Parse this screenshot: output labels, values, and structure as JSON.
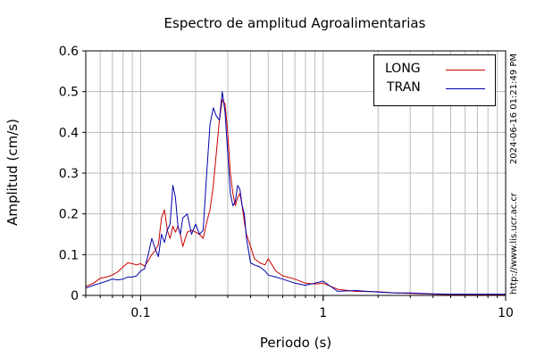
{
  "chart_data": {
    "type": "line",
    "title": "Espectro de amplitud Agroalimentarias",
    "xlabel": "Periodo (s)",
    "ylabel": "Amplitud (cm/s)",
    "xscale": "log",
    "xlim": [
      0.05,
      10
    ],
    "ylim": [
      0,
      0.6
    ],
    "xticks": [
      0.1,
      1,
      10
    ],
    "xtick_labels": [
      "0.1",
      "1",
      "10"
    ],
    "yticks": [
      0,
      0.1,
      0.2,
      0.3,
      0.4,
      0.5,
      0.6
    ],
    "ytick_labels": [
      "0",
      "0.1",
      "0.2",
      "0.3",
      "0.4",
      "0.5",
      "0.6"
    ],
    "grid": true,
    "legend_position": "top-right",
    "series": [
      {
        "name": "LONG",
        "color": "#cc0000",
        "x": [
          0.05,
          0.055,
          0.06,
          0.065,
          0.07,
          0.075,
          0.08,
          0.085,
          0.09,
          0.095,
          0.1,
          0.105,
          0.11,
          0.115,
          0.12,
          0.125,
          0.13,
          0.135,
          0.14,
          0.145,
          0.15,
          0.155,
          0.16,
          0.165,
          0.17,
          0.18,
          0.19,
          0.2,
          0.21,
          0.22,
          0.23,
          0.24,
          0.25,
          0.26,
          0.27,
          0.28,
          0.29,
          0.3,
          0.31,
          0.32,
          0.33,
          0.34,
          0.35,
          0.36,
          0.37,
          0.38,
          0.4,
          0.42,
          0.45,
          0.48,
          0.5,
          0.55,
          0.6,
          0.7,
          0.8,
          0.9,
          1.0,
          1.2,
          1.5,
          2.0,
          2.5,
          3.0,
          4.0,
          5.0,
          7.0,
          10.0
        ],
        "values": [
          0.022,
          0.03,
          0.042,
          0.045,
          0.05,
          0.058,
          0.07,
          0.08,
          0.078,
          0.075,
          0.078,
          0.072,
          0.085,
          0.1,
          0.11,
          0.125,
          0.19,
          0.21,
          0.16,
          0.14,
          0.17,
          0.155,
          0.17,
          0.15,
          0.12,
          0.155,
          0.16,
          0.155,
          0.15,
          0.14,
          0.18,
          0.21,
          0.27,
          0.35,
          0.43,
          0.48,
          0.47,
          0.4,
          0.3,
          0.25,
          0.22,
          0.24,
          0.25,
          0.22,
          0.18,
          0.15,
          0.12,
          0.09,
          0.08,
          0.075,
          0.09,
          0.06,
          0.048,
          0.04,
          0.03,
          0.028,
          0.03,
          0.015,
          0.01,
          0.009,
          0.006,
          0.005,
          0.003,
          0.002,
          0.002,
          0.002
        ]
      },
      {
        "name": "TRAN",
        "color": "#0000aa",
        "x": [
          0.05,
          0.055,
          0.06,
          0.065,
          0.07,
          0.075,
          0.08,
          0.085,
          0.09,
          0.095,
          0.1,
          0.105,
          0.11,
          0.115,
          0.12,
          0.125,
          0.13,
          0.135,
          0.14,
          0.145,
          0.15,
          0.155,
          0.16,
          0.165,
          0.17,
          0.18,
          0.19,
          0.2,
          0.21,
          0.22,
          0.23,
          0.24,
          0.25,
          0.26,
          0.27,
          0.28,
          0.29,
          0.3,
          0.31,
          0.32,
          0.33,
          0.34,
          0.35,
          0.36,
          0.37,
          0.38,
          0.4,
          0.42,
          0.45,
          0.48,
          0.5,
          0.55,
          0.6,
          0.7,
          0.8,
          0.9,
          1.0,
          1.2,
          1.5,
          2.0,
          2.5,
          3.0,
          4.0,
          5.0,
          7.0,
          10.0
        ],
        "values": [
          0.018,
          0.025,
          0.03,
          0.035,
          0.04,
          0.038,
          0.04,
          0.045,
          0.045,
          0.048,
          0.06,
          0.065,
          0.1,
          0.14,
          0.115,
          0.095,
          0.15,
          0.13,
          0.16,
          0.175,
          0.27,
          0.24,
          0.17,
          0.15,
          0.19,
          0.2,
          0.15,
          0.175,
          0.15,
          0.16,
          0.3,
          0.42,
          0.46,
          0.44,
          0.43,
          0.5,
          0.45,
          0.35,
          0.25,
          0.22,
          0.23,
          0.27,
          0.26,
          0.22,
          0.2,
          0.14,
          0.08,
          0.075,
          0.07,
          0.06,
          0.05,
          0.045,
          0.04,
          0.03,
          0.025,
          0.03,
          0.035,
          0.01,
          0.012,
          0.008,
          0.006,
          0.006,
          0.004,
          0.003,
          0.003,
          0.003
        ]
      }
    ]
  },
  "side_labels": {
    "timestamp": "2024-06-16 01:21:49 PM",
    "url": "http://www.lis.ucr.ac.cr"
  }
}
